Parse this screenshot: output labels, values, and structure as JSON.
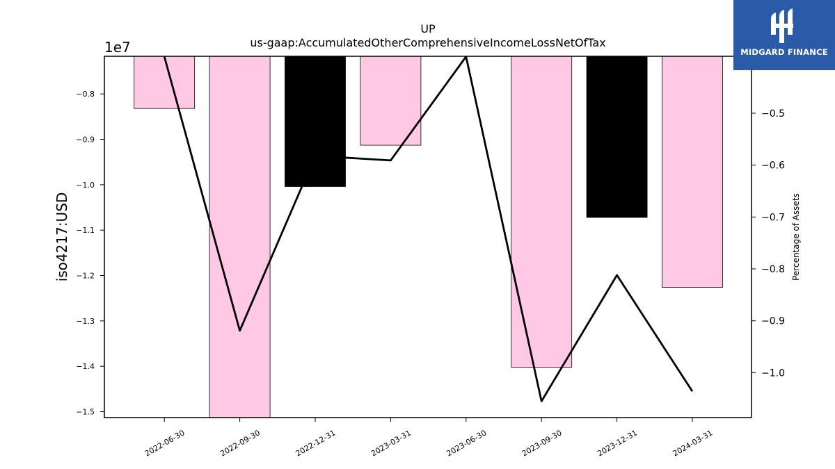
{
  "chart_data": {
    "type": "bar",
    "title": "UP",
    "subtitle": "us-gaap:AccumulatedOtherComprehensiveIncomeLossNetOfTax",
    "ylabel": "iso4217:USD",
    "ylabel_right": "Percentage of Assets",
    "y_offset_label": "1e7",
    "categories": [
      "2022-06-30",
      "2022-09-30",
      "2022-12-31",
      "2023-03-31",
      "2023-06-30",
      "2023-09-30",
      "2023-12-31",
      "2024-03-31"
    ],
    "series": [
      {
        "type": "bar",
        "axis": "left",
        "values": [
          -8320000.0,
          -15130000.0,
          -10040000.0,
          -9130000.0,
          null,
          -14020000.0,
          -10720000.0,
          -12260000.0
        ],
        "colors": [
          "#ffc9e5",
          "#ffc9e5",
          "#000000",
          "#ffc9e5",
          null,
          "#ffc9e5",
          "#000000",
          "#ffc9e5"
        ]
      },
      {
        "type": "line",
        "axis": "right",
        "values": [
          -0.391,
          -0.919,
          -0.582,
          -0.591,
          -0.391,
          -1.055,
          -0.812,
          -1.036
        ],
        "color": "#000000"
      }
    ],
    "ylim": [
      -15130000.0,
      -7170000.0
    ],
    "y2lim": [
      -1.0865,
      -0.3903
    ],
    "yticks": [
      -1.5,
      -1.4,
      -1.3,
      -1.2,
      -1.1,
      -1.0,
      -0.9,
      -0.8
    ],
    "y2ticks": [
      -1.0,
      -0.9,
      -0.8,
      -0.7,
      -0.6,
      -0.5
    ],
    "legend": "none",
    "grid": false
  },
  "logo": {
    "text": "MIDGARD FINANCE"
  }
}
